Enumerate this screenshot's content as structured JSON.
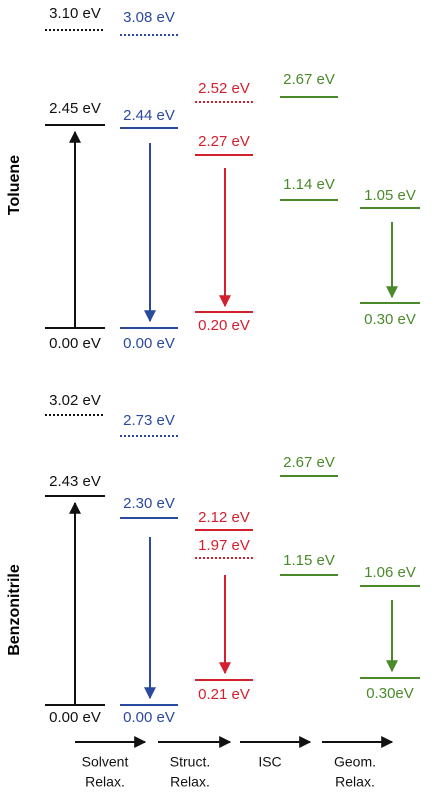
{
  "panels": [
    {
      "label": "Toluene",
      "levels": [
        "3.10 eV",
        "3.08 eV",
        "2.45 eV",
        "2.44 eV",
        "2.52 eV",
        "2.27 eV",
        "2.67 eV",
        "1.14 eV",
        "1.05 eV",
        "0.00 eV",
        "0.00 eV",
        "0.20 eV",
        "0.30 eV"
      ]
    },
    {
      "label": "Benzonitrile",
      "levels": [
        "3.02 eV",
        "2.73 eV",
        "2.43 eV",
        "2.30 eV",
        "2.12 eV",
        "1.97 eV",
        "2.67 eV",
        "1.15 eV",
        "1.06 eV",
        "0.00 eV",
        "0.00 eV",
        "0.21 eV",
        "0.30eV"
      ]
    }
  ],
  "steps": [
    [
      "Solvent",
      "Relax."
    ],
    [
      "Struct.",
      "Relax."
    ],
    [
      "ISC"
    ],
    [
      "Geom.",
      "Relax."
    ]
  ]
}
